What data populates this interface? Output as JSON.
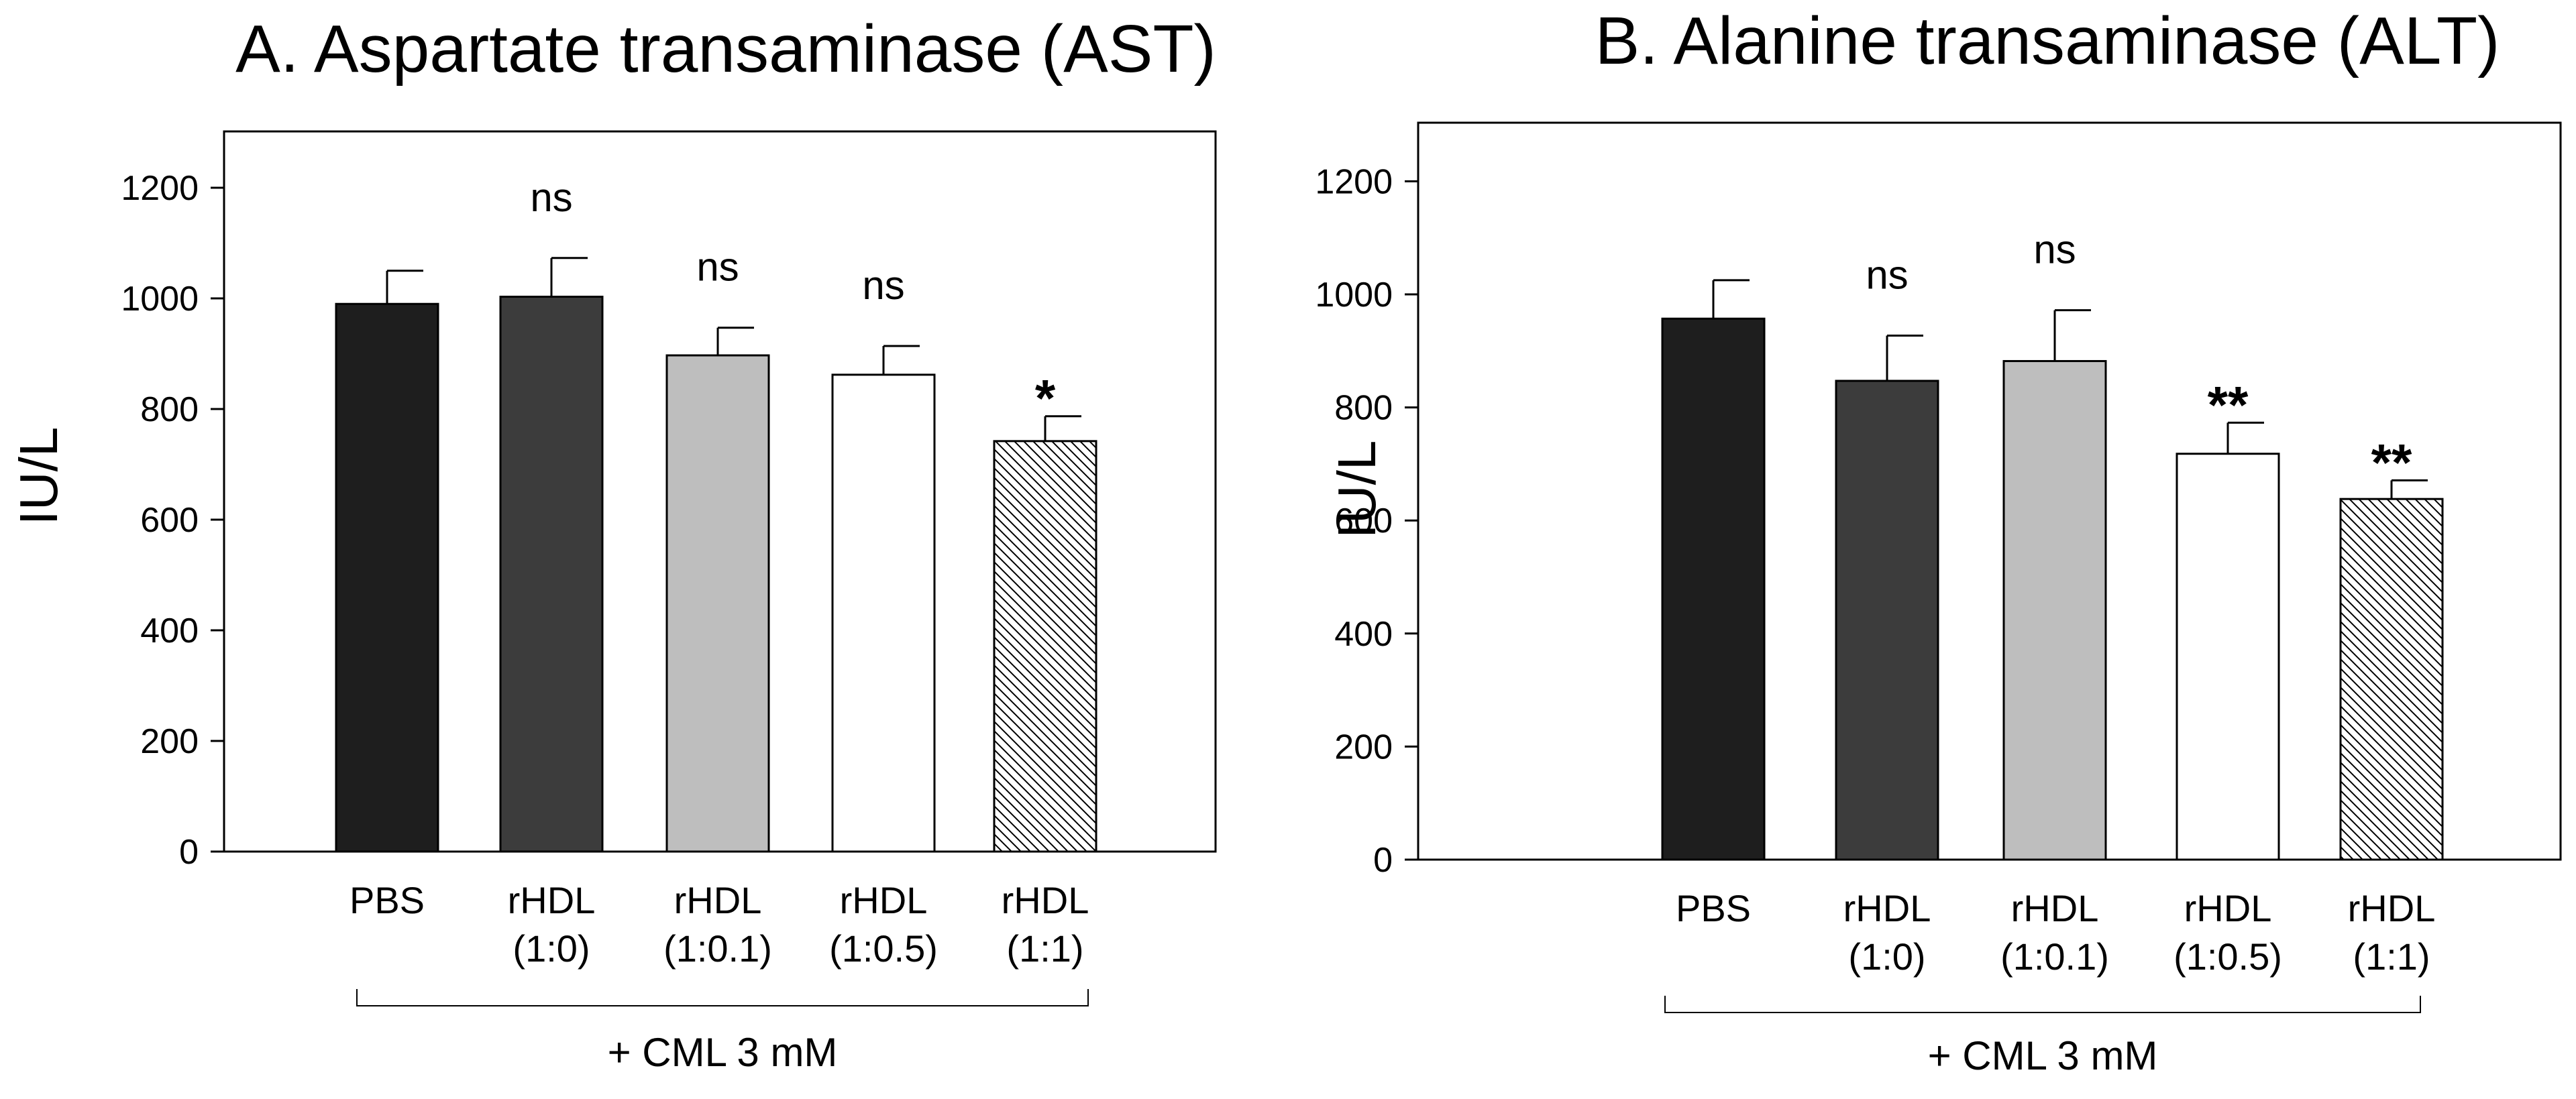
{
  "chart_data": [
    {
      "type": "bar",
      "title": "A. Aspartate transaminase (AST)",
      "xlabel": "",
      "ylabel": "IU/L",
      "ylim": [
        0,
        1300
      ],
      "yticks": [
        0,
        200,
        400,
        600,
        800,
        1000,
        1200
      ],
      "grid": false,
      "categories": [
        "PBS",
        "rHDL (1:0)",
        "rHDL (1:0.1)",
        "rHDL (1:0.5)",
        "rHDL (1:1)"
      ],
      "category_lines": [
        [
          "PBS"
        ],
        [
          "rHDL",
          "(1:0)"
        ],
        [
          "rHDL",
          "(1:0.1)"
        ],
        [
          "rHDL",
          "(1:0.5)"
        ],
        [
          "rHDL",
          "(1:1)"
        ]
      ],
      "values": [
        990,
        1003,
        897,
        862,
        742
      ],
      "errors": [
        60,
        70,
        50,
        52,
        45
      ],
      "significance": [
        "",
        "ns",
        "ns",
        "ns",
        "*"
      ],
      "fills": [
        "#1e1e1e",
        "#3c3c3c",
        "#bebebe",
        "#ffffff",
        "hatch"
      ],
      "treatment_label": "+ CML 3 mM"
    },
    {
      "type": "bar",
      "title": "B. Alanine transaminase (ALT)",
      "xlabel": "",
      "ylabel": "IU/L",
      "ylim": [
        0,
        1300
      ],
      "yticks": [
        0,
        200,
        400,
        600,
        800,
        1000,
        1200
      ],
      "grid": false,
      "categories": [
        "PBS",
        "rHDL (1:0)",
        "rHDL (1:0.1)",
        "rHDL (1:0.5)",
        "rHDL (1:1)"
      ],
      "category_lines": [
        [
          "PBS"
        ],
        [
          "rHDL",
          "(1:0)"
        ],
        [
          "rHDL",
          "(1:0.1)"
        ],
        [
          "rHDL",
          "(1:0.5)"
        ],
        [
          "rHDL",
          "(1:1)"
        ]
      ],
      "values": [
        957,
        847,
        882,
        718,
        638
      ],
      "errors": [
        68,
        80,
        90,
        55,
        33
      ],
      "significance": [
        "",
        "ns",
        "ns",
        "**",
        "**"
      ],
      "fills": [
        "#1e1e1e",
        "#3c3c3c",
        "#bebebe",
        "#ffffff",
        "hatch"
      ],
      "treatment_label": "+ CML 3 mM"
    }
  ]
}
